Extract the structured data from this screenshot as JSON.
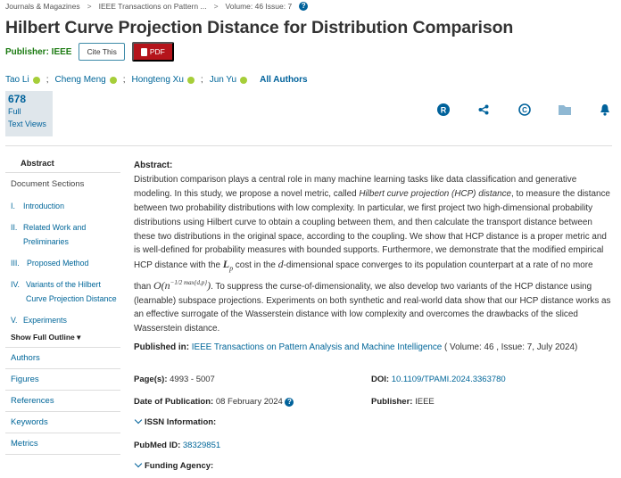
{
  "breadcrumb": [
    "Journals & Magazines",
    "IEEE Transactions on Pattern ...",
    "Volume: 46 Issue: 7"
  ],
  "breadcrumb_sep": ">",
  "title": "Hilbert Curve Projection Distance for Distribution Comparison",
  "publisher_label": "Publisher:  IEEE",
  "cite_label": "Cite This",
  "pdf_label": "PDF",
  "authors": [
    "Tao Li",
    "Cheng Meng",
    "Hongteng Xu",
    "Jun Yu"
  ],
  "author_sep": ";",
  "all_authors": "All Authors",
  "views": {
    "count": "678",
    "line1": "Full",
    "line2": "Text Views"
  },
  "toolbar_icons": [
    "rights-icon",
    "share-icon",
    "copyright-icon",
    "folder-icon",
    "bell-icon"
  ],
  "sidebar": {
    "abstract": "Abstract",
    "doc_sections": "Document Sections",
    "sections": [
      {
        "num": "I.",
        "label": "Introduction"
      },
      {
        "num": "II.",
        "label": "Related Work and Preliminaries"
      },
      {
        "num": "III.",
        "label": "Proposed Method"
      },
      {
        "num": "IV.",
        "label": "Variants of the Hilbert Curve Projection Distance"
      },
      {
        "num": "V.",
        "label": "Experiments"
      }
    ],
    "show_outline": "Show Full Outline",
    "nav": [
      "Authors",
      "Figures",
      "References",
      "Keywords",
      "Metrics"
    ]
  },
  "abstract": {
    "heading": "Abstract:",
    "p1": "Distribution comparison plays a central role in many machine learning tasks like data classification and generative modeling. In this study, we propose a novel metric, called ",
    "italic": "Hilbert curve projection (HCP) distance",
    "p2": ", to measure the distance between two probability distributions with low complexity. In particular, we first project two high-dimensional probability distributions using Hilbert curve to obtain a coupling between them, and then calculate the transport distance between these two distributions in the original space, according to the coupling. We show that HCP distance is a proper metric and is well-defined for probability measures with bounded supports. Furthermore, we demonstrate that the modified empirical HCP distance with the ",
    "m1": "L",
    "m1sub": "p",
    "p3": " cost in the ",
    "m2": "d",
    "p4": "-dimensional space converges to its population counterpart at a rate of no more than ",
    "m3": "O(n",
    "m3sup": "−1/2 max{d,p}",
    "m3end": ")",
    "p5": ". To suppress the curse-of-dimensionality, we also develop two variants of the HCP distance using (learnable) subspace projections. Experiments on both synthetic and real-world data show that our HCP distance works as an effective surrogate of the Wasserstein distance with low complexity and overcomes the drawbacks of the sliced Wasserstein distance."
  },
  "published_in": {
    "label": "Published in:",
    "journal": "IEEE Transactions on Pattern Analysis and Machine Intelligence",
    "details": " ( Volume: 46 , Issue: 7, July 2024)"
  },
  "meta": {
    "pages_label": "Page(s):",
    "pages": "4993 - 5007",
    "doi_label": "DOI:",
    "doi": "10.1109/TPAMI.2024.3363780",
    "date_label": "Date of Publication:",
    "date": "08 February 2024",
    "publisher_label": "Publisher:",
    "publisher": "IEEE",
    "issn_label": "ISSN Information:",
    "pubmed_label": "PubMed ID:",
    "pubmed": "38329851",
    "funding_label": "Funding Agency:"
  },
  "colors": {
    "link": "#006699",
    "publisher_green": "#1a7a10",
    "pdf_red": "#b5141b",
    "views_bg": "#dfe6eb"
  }
}
